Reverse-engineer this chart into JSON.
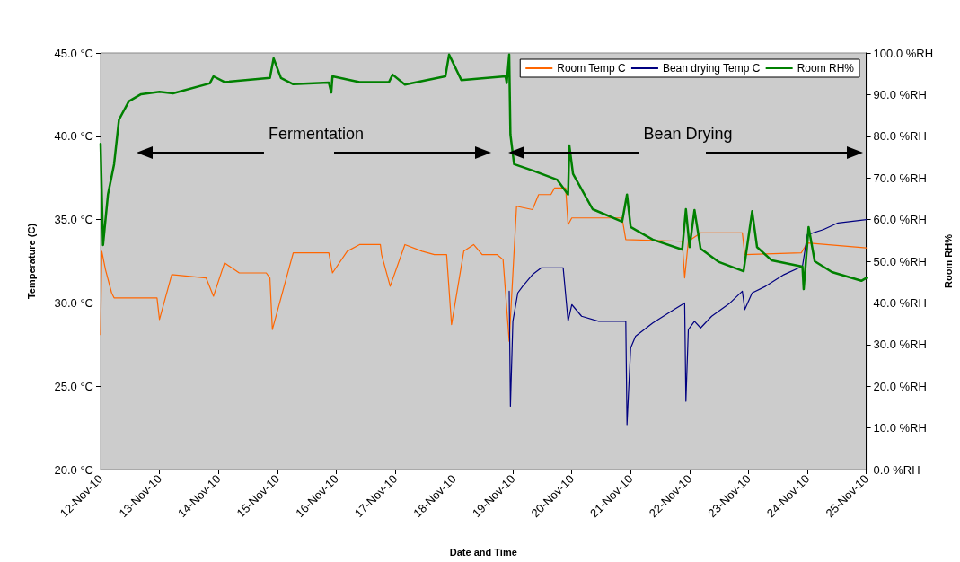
{
  "chart_data": {
    "type": "line",
    "xlabel": "Date and Time",
    "ylabel": "Temperature (C)",
    "y2label": "Room RH%",
    "xlim": [
      "--11-12",
      "--11-25"
    ],
    "xticks": [
      {
        "value": "--11-12",
        "label": "12-Nov-10"
      },
      {
        "value": "--11-13",
        "label": "13-Nov-10"
      },
      {
        "value": "--11-14",
        "label": "14-Nov-10"
      },
      {
        "value": "--11-15",
        "label": "15-Nov-10"
      },
      {
        "value": "--11-16",
        "label": "16-Nov-10"
      },
      {
        "value": "--11-17",
        "label": "17-Nov-10"
      },
      {
        "value": "--11-18",
        "label": "18-Nov-10"
      },
      {
        "value": "--11-19",
        "label": "19-Nov-10"
      },
      {
        "value": "--11-20",
        "label": "20-Nov-10"
      },
      {
        "value": "--11-21",
        "label": "21-Nov-10"
      },
      {
        "value": "--11-22",
        "label": "22-Nov-10"
      },
      {
        "value": "--11-23",
        "label": "23-Nov-10"
      },
      {
        "value": "--11-24",
        "label": "24-Nov-10"
      },
      {
        "value": "--11-25",
        "label": "25-Nov-10"
      }
    ],
    "ylim": [
      20,
      45
    ],
    "yticks": [
      {
        "value": 20,
        "label": "20.0 °C"
      },
      {
        "value": 25,
        "label": "25.0 °C"
      },
      {
        "value": 30,
        "label": "30.0 °C"
      },
      {
        "value": 35,
        "label": "35.0 °C"
      },
      {
        "value": 40,
        "label": "40.0 °C"
      },
      {
        "value": 45,
        "label": "45.0 °C"
      }
    ],
    "y2lim": [
      0,
      100
    ],
    "y2ticks": [
      {
        "value": 0,
        "label": "0.0 %RH"
      },
      {
        "value": 10,
        "label": "10.0 %RH"
      },
      {
        "value": 20,
        "label": "20.0 %RH"
      },
      {
        "value": 30,
        "label": "30.0 %RH"
      },
      {
        "value": 40,
        "label": "40.0 %RH"
      },
      {
        "value": 50,
        "label": "50.0 %RH"
      },
      {
        "value": 60,
        "label": "60.0 %RH"
      },
      {
        "value": 70,
        "label": "70.0 %RH"
      },
      {
        "value": 80,
        "label": "80.0 %RH"
      },
      {
        "value": 90,
        "label": "90.0 %RH"
      },
      {
        "value": 100,
        "label": "100.0 %RH"
      }
    ],
    "grid": false,
    "legend": "top right",
    "marker": "none",
    "line_style": "solid",
    "annotations": [
      "Fermentation",
      "Bean Drying"
    ],
    "series": [
      {
        "name": "Room Temp C",
        "color": "#ff6600",
        "x": [
          "--11-12T00:00",
          "--11-12T00:30",
          "--11-12T02:00",
          "--11-12T04:30",
          "--11-12T05:30",
          "--11-12T23:00",
          "--11-13T00:00",
          "--11-13T05:00",
          "--11-13T19:00",
          "--11-13T22:00",
          "--11-14T02:30",
          "--11-14T08:30",
          "--11-14T19:30",
          "--11-14T21:00",
          "--11-14T22:00",
          "--11-15T05:00",
          "--11-15T06:30",
          "--11-15T21:00",
          "--11-15T22:30",
          "--11-16T04:30",
          "--11-16T09:30",
          "--11-16T18:00",
          "--11-16T18:30",
          "--11-16T22:00",
          "--11-17T04:00",
          "--11-17T11:00",
          "--11-17T16:00",
          "--11-17T21:00",
          "--11-17T23:00",
          "--11-18T04:00",
          "--11-18T08:00",
          "--11-18T11:30",
          "--11-18T17:30",
          "--11-18T20:00",
          "--11-18T22:30",
          "--11-19T01:30",
          "--11-19T08:00",
          "--11-19T10:30",
          "--11-19T15:30",
          "--11-19T17:00",
          "--11-19T21:30",
          "--11-19T22:30",
          "--11-20T00:00",
          "--11-20T20:30",
          "--11-20T22:00",
          "--11-21T21:00",
          "--11-21T22:00",
          "--11-21T23:30",
          "--11-22T04:30",
          "--11-22T21:30",
          "--11-22T22:30",
          "--11-23T21:30",
          "--11-24T00:00",
          "--11-25T00:00"
        ],
        "values": [
          28.1,
          33.1,
          32.0,
          30.6,
          30.3,
          30.3,
          29.0,
          31.7,
          31.5,
          30.4,
          32.4,
          31.8,
          31.8,
          31.5,
          28.4,
          32.2,
          33.0,
          33.0,
          31.8,
          33.1,
          33.5,
          33.5,
          32.9,
          31.0,
          33.5,
          33.1,
          32.9,
          32.9,
          28.7,
          33.1,
          33.5,
          32.9,
          32.9,
          32.6,
          27.7,
          35.8,
          35.6,
          36.5,
          36.5,
          36.9,
          36.9,
          34.7,
          35.1,
          35.1,
          33.8,
          33.7,
          31.5,
          33.7,
          34.2,
          34.2,
          32.9,
          33.0,
          33.6,
          33.3
        ]
      },
      {
        "name": "Bean drying Temp C",
        "color": "#000080",
        "x": [
          "--11-18T22:30",
          "--11-18T23:00",
          "--11-19T00:00",
          "--11-19T02:00",
          "--11-19T04:00",
          "--11-19T08:00",
          "--11-19T11:30",
          "--11-19T20:30",
          "--11-19T22:30",
          "--11-20T00:00",
          "--11-20T04:00",
          "--11-20T11:00",
          "--11-20T22:00",
          "--11-20T22:30",
          "--11-21T00:00",
          "--11-21T02:00",
          "--11-21T09:00",
          "--11-21T16:30",
          "--11-21T22:00",
          "--11-21T22:30",
          "--11-21T23:30",
          "--11-22T02:00",
          "--11-22T04:30",
          "--11-22T09:00",
          "--11-22T16:30",
          "--11-22T21:30",
          "--11-22T22:30",
          "--11-23T01:30",
          "--11-23T07:00",
          "--11-23T14:30",
          "--11-23T22:00",
          "--11-24T00:00",
          "--11-24T06:30",
          "--11-24T12:30",
          "--11-25T00:00"
        ],
        "values": [
          30.7,
          23.8,
          28.9,
          30.6,
          31.0,
          31.7,
          32.1,
          32.1,
          28.9,
          29.9,
          29.2,
          28.9,
          28.9,
          22.7,
          27.3,
          28.0,
          28.8,
          29.5,
          30.0,
          24.1,
          28.4,
          28.9,
          28.5,
          29.2,
          30.0,
          30.7,
          29.6,
          30.6,
          31.0,
          31.7,
          32.2,
          34.1,
          34.4,
          34.8,
          35.0
        ]
      },
      {
        "name": "Room RH%",
        "color": "#008000",
        "axis": "y2",
        "x": [
          "--11-12T00:00",
          "--11-12T01:00",
          "--11-12T03:00",
          "--11-12T05:30",
          "--11-12T07:30",
          "--11-12T11:30",
          "--11-12T16:30",
          "--11-13T00:00",
          "--11-13T05:30",
          "--11-13T20:30",
          "--11-13T22:00",
          "--11-14T02:30",
          "--11-14T21:00",
          "--11-14T22:30",
          "--11-15T01:30",
          "--11-15T06:30",
          "--11-15T21:00",
          "--11-15T22:00",
          "--11-15T22:30",
          "--11-16T09:30",
          "--11-16T21:30",
          "--11-16T23:00",
          "--11-17T04:00",
          "--11-17T20:30",
          "--11-17T22:00",
          "--11-18T03:00",
          "--11-18T21:00",
          "--11-18T21:30",
          "--11-18T22:30",
          "--11-18T23:00",
          "--11-19T00:30",
          "--11-19T08:00",
          "--11-19T18:00",
          "--11-19T22:30",
          "--11-19T23:00",
          "--11-20T00:30",
          "--11-20T08:30",
          "--11-20T20:30",
          "--11-20T22:30",
          "--11-21T00:00",
          "--11-21T09:00",
          "--11-21T21:00",
          "--11-21T22:30",
          "--11-22T00:00",
          "--11-22T02:00",
          "--11-22T04:30",
          "--11-22T12:00",
          "--11-22T22:00",
          "--11-23T01:30",
          "--11-23T03:30",
          "--11-23T09:30",
          "--11-23T22:00",
          "--11-23T22:30",
          "--11-24T00:30",
          "--11-24T03:00",
          "--11-24T10:00",
          "--11-24T22:00",
          "--11-25T00:00"
        ],
        "values": [
          78.2,
          53.9,
          66.0,
          73.3,
          84.0,
          88.4,
          90.1,
          90.7,
          90.3,
          92.7,
          94.4,
          93.0,
          94.0,
          98.7,
          94.0,
          92.5,
          92.9,
          90.5,
          94.4,
          93.0,
          93.0,
          94.8,
          92.4,
          94.4,
          99.6,
          93.5,
          94.4,
          92.8,
          99.6,
          80.4,
          73.3,
          71.8,
          69.6,
          66.0,
          77.8,
          71.0,
          62.5,
          59.5,
          66.0,
          58.2,
          55.2,
          52.8,
          62.5,
          53.4,
          62.3,
          53.0,
          49.8,
          47.6,
          62.0,
          53.4,
          50.2,
          48.7,
          43.3,
          58.2,
          50.0,
          47.4,
          45.3,
          46.0
        ]
      }
    ]
  }
}
